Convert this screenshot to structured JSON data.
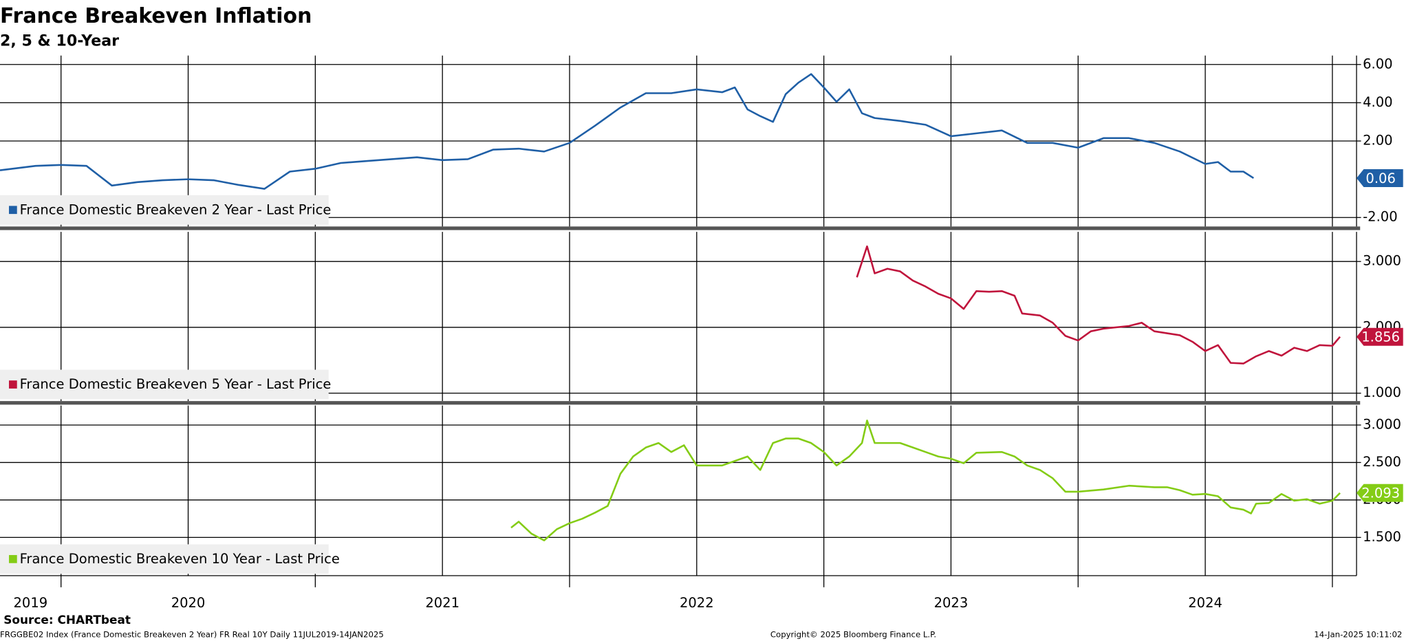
{
  "header": {
    "title": "France Breakeven Inflation",
    "subtitle": "2, 5 & 10-Year"
  },
  "footer": {
    "source": "Source: CHARTbeat",
    "description": "FRGGBE02 Index (France Domestic Breakeven 2 Year) FR Real 10Y  Daily 11JUL2019-14JAN2025",
    "copyright": "Copyright© 2025 Bloomberg Finance L.P.",
    "timestamp": "14-Jan-2025 10:11:02"
  },
  "x_axis": {
    "xlim": [
      2019.76,
      2025.095
    ],
    "xticks": [
      {
        "value": 2019.88,
        "label": "2019"
      },
      {
        "value": 2020.5,
        "label": "2020"
      },
      {
        "value": 2021.5,
        "label": "2021"
      },
      {
        "value": 2022.5,
        "label": "2022"
      },
      {
        "value": 2023.5,
        "label": "2023"
      },
      {
        "value": 2024.5,
        "label": "2024"
      }
    ],
    "xgrid": [
      2020,
      2020.5,
      2021,
      2021.5,
      2022,
      2022.5,
      2023,
      2023.5,
      2024,
      2024.5,
      2025
    ]
  },
  "chart_data": [
    {
      "type": "line",
      "grid": true,
      "x": [
        2019.76,
        2019.9,
        2020.0,
        2020.1,
        2020.2,
        2020.3,
        2020.4,
        2020.5,
        2020.6,
        2020.7,
        2020.8,
        2020.9,
        2021.0,
        2021.1,
        2021.2,
        2021.3,
        2021.4,
        2021.5,
        2021.6,
        2021.7,
        2021.8,
        2021.9,
        2022.0,
        2022.1,
        2022.2,
        2022.3,
        2022.4,
        2022.5,
        2022.6,
        2022.65,
        2022.7,
        2022.75,
        2022.8,
        2022.85,
        2022.9,
        2022.95,
        2023.0,
        2023.05,
        2023.1,
        2023.15,
        2023.2,
        2023.3,
        2023.4,
        2023.5,
        2023.6,
        2023.7,
        2023.8,
        2023.9,
        2024.0,
        2024.1,
        2024.2,
        2024.3,
        2024.4,
        2024.5,
        2024.55,
        2024.6,
        2024.65,
        2024.69
      ],
      "series": [
        {
          "name": "France Domestic Breakeven 2 Year - Last Price",
          "color": "#1f5fa6",
          "values": [
            0.47,
            0.7,
            0.75,
            0.7,
            -0.33,
            -0.15,
            -0.05,
            0,
            -0.05,
            -0.3,
            -0.5,
            0.4,
            0.55,
            0.85,
            0.95,
            1.05,
            1.15,
            1.0,
            1.05,
            1.55,
            1.6,
            1.45,
            1.9,
            2.8,
            3.75,
            4.5,
            4.5,
            4.7,
            4.55,
            4.8,
            3.65,
            3.3,
            3.0,
            4.45,
            5.05,
            5.5,
            4.8,
            4.05,
            4.7,
            3.45,
            3.2,
            3.05,
            2.85,
            2.25,
            2.4,
            2.55,
            1.9,
            1.9,
            1.65,
            2.15,
            2.15,
            1.9,
            1.45,
            0.8,
            0.9,
            0.4,
            0.4,
            0.06
          ]
        }
      ],
      "ylim": [
        -2.47,
        6.47
      ],
      "yticks": [
        {
          "value": -2,
          "label": "-2.00"
        },
        {
          "value": 2,
          "label": "2.00"
        },
        {
          "value": 4,
          "label": "4.00"
        },
        {
          "value": 6,
          "label": "6.00"
        }
      ]
    },
    {
      "type": "line",
      "grid": true,
      "x": [
        2023.13,
        2023.17,
        2023.2,
        2023.25,
        2023.3,
        2023.35,
        2023.4,
        2023.45,
        2023.5,
        2023.55,
        2023.6,
        2023.65,
        2023.7,
        2023.75,
        2023.78,
        2023.85,
        2023.9,
        2023.95,
        2024.0,
        2024.05,
        2024.1,
        2024.2,
        2024.25,
        2024.3,
        2024.35,
        2024.4,
        2024.45,
        2024.5,
        2024.55,
        2024.6,
        2024.65,
        2024.7,
        2024.75,
        2024.8,
        2024.85,
        2024.9,
        2024.95,
        2025.0,
        2025.03
      ],
      "series": [
        {
          "name": "France Domestic Breakeven 5 Year - Last Price",
          "color": "#c0143c",
          "values": [
            2.76,
            3.23,
            2.82,
            2.89,
            2.85,
            2.71,
            2.62,
            2.51,
            2.44,
            2.28,
            2.55,
            2.54,
            2.55,
            2.48,
            2.21,
            2.18,
            2.07,
            1.87,
            1.8,
            1.94,
            1.98,
            2.02,
            2.07,
            1.94,
            1.91,
            1.88,
            1.78,
            1.64,
            1.73,
            1.46,
            1.45,
            1.56,
            1.64,
            1.57,
            1.69,
            1.64,
            1.73,
            1.72,
            1.856
          ]
        }
      ],
      "ylim": [
        0.88,
        3.45
      ],
      "yticks": [
        {
          "value": 1,
          "label": "1.000"
        },
        {
          "value": 2,
          "label": "2.000"
        },
        {
          "value": 3,
          "label": "3.000"
        }
      ]
    },
    {
      "type": "line",
      "grid": true,
      "x": [
        2021.77,
        2021.8,
        2021.85,
        2021.9,
        2021.95,
        2022.0,
        2022.05,
        2022.1,
        2022.15,
        2022.2,
        2022.25,
        2022.3,
        2022.35,
        2022.4,
        2022.45,
        2022.5,
        2022.55,
        2022.6,
        2022.65,
        2022.7,
        2022.75,
        2022.8,
        2022.85,
        2022.9,
        2022.95,
        2023.0,
        2023.05,
        2023.1,
        2023.15,
        2023.17,
        2023.2,
        2023.25,
        2023.3,
        2023.35,
        2023.4,
        2023.45,
        2023.5,
        2023.55,
        2023.6,
        2023.7,
        2023.75,
        2023.8,
        2023.85,
        2023.9,
        2023.95,
        2024.0,
        2024.1,
        2024.2,
        2024.3,
        2024.35,
        2024.4,
        2024.45,
        2024.5,
        2024.55,
        2024.6,
        2024.65,
        2024.68,
        2024.7,
        2024.75,
        2024.8,
        2024.85,
        2024.9,
        2024.95,
        2025.0,
        2025.03
      ],
      "series": [
        {
          "name": "France Domestic Breakeven 10 Year - Last Price",
          "color": "#84cc16",
          "values": [
            1.63,
            1.71,
            1.55,
            1.46,
            1.61,
            1.69,
            1.75,
            1.83,
            1.92,
            2.35,
            2.58,
            2.7,
            2.76,
            2.64,
            2.73,
            2.46,
            2.46,
            2.46,
            2.52,
            2.58,
            2.4,
            2.76,
            2.82,
            2.82,
            2.76,
            2.64,
            2.46,
            2.58,
            2.76,
            3.06,
            2.76,
            2.76,
            2.76,
            2.7,
            2.64,
            2.58,
            2.55,
            2.49,
            2.63,
            2.64,
            2.58,
            2.46,
            2.4,
            2.29,
            2.11,
            2.11,
            2.14,
            2.19,
            2.17,
            2.17,
            2.13,
            2.07,
            2.08,
            2.05,
            1.9,
            1.87,
            1.82,
            1.95,
            1.96,
            2.08,
            1.99,
            2.01,
            1.95,
            1.99,
            2.093
          ]
        }
      ],
      "ylim": [
        0.99,
        3.26
      ],
      "yticks": [
        {
          "value": 1.5,
          "label": "1.500"
        },
        {
          "value": 2,
          "label": "2.000"
        },
        {
          "value": 2.5,
          "label": "2.500"
        },
        {
          "value": 3,
          "label": "3.000"
        }
      ]
    }
  ]
}
